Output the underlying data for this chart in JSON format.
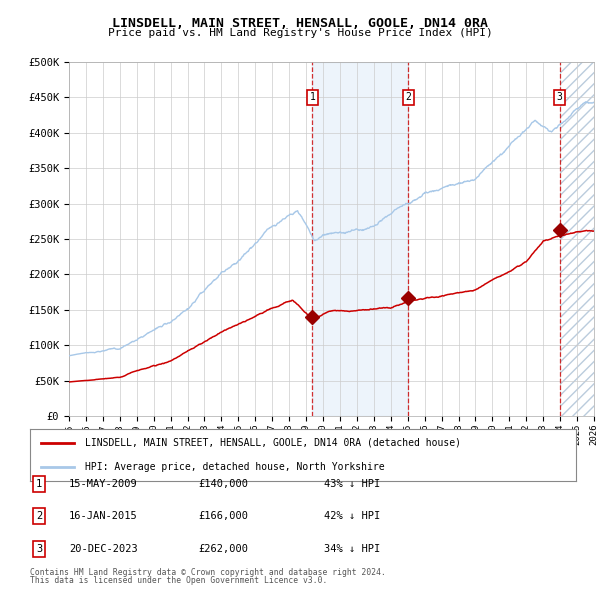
{
  "title": "LINSDELL, MAIN STREET, HENSALL, GOOLE, DN14 0RA",
  "subtitle": "Price paid vs. HM Land Registry's House Price Index (HPI)",
  "hpi_color": "#a8c8e8",
  "price_color": "#cc0000",
  "marker_color": "#990000",
  "bg_color": "#ffffff",
  "plot_bg_color": "#ffffff",
  "grid_color": "#cccccc",
  "shade_color": "#cce0f5",
  "ylabel_ticks": [
    "£0",
    "£50K",
    "£100K",
    "£150K",
    "£200K",
    "£250K",
    "£300K",
    "£350K",
    "£400K",
    "£450K",
    "£500K"
  ],
  "ytick_values": [
    0,
    50000,
    100000,
    150000,
    200000,
    250000,
    300000,
    350000,
    400000,
    450000,
    500000
  ],
  "xmin": 1995,
  "xmax": 2026,
  "ymin": 0,
  "ymax": 500000,
  "sale1_x": 2009.37,
  "sale1_price": 140000,
  "sale1_date": "15-MAY-2009",
  "sale1_pct": "43%",
  "sale2_x": 2015.04,
  "sale2_price": 166000,
  "sale2_date": "16-JAN-2015",
  "sale2_pct": "42%",
  "sale3_x": 2023.97,
  "sale3_price": 262000,
  "sale3_date": "20-DEC-2023",
  "sale3_pct": "34%",
  "legend_label1": "LINSDELL, MAIN STREET, HENSALL, GOOLE, DN14 0RA (detached house)",
  "legend_label2": "HPI: Average price, detached house, North Yorkshire",
  "footnote1": "Contains HM Land Registry data © Crown copyright and database right 2024.",
  "footnote2": "This data is licensed under the Open Government Licence v3.0."
}
